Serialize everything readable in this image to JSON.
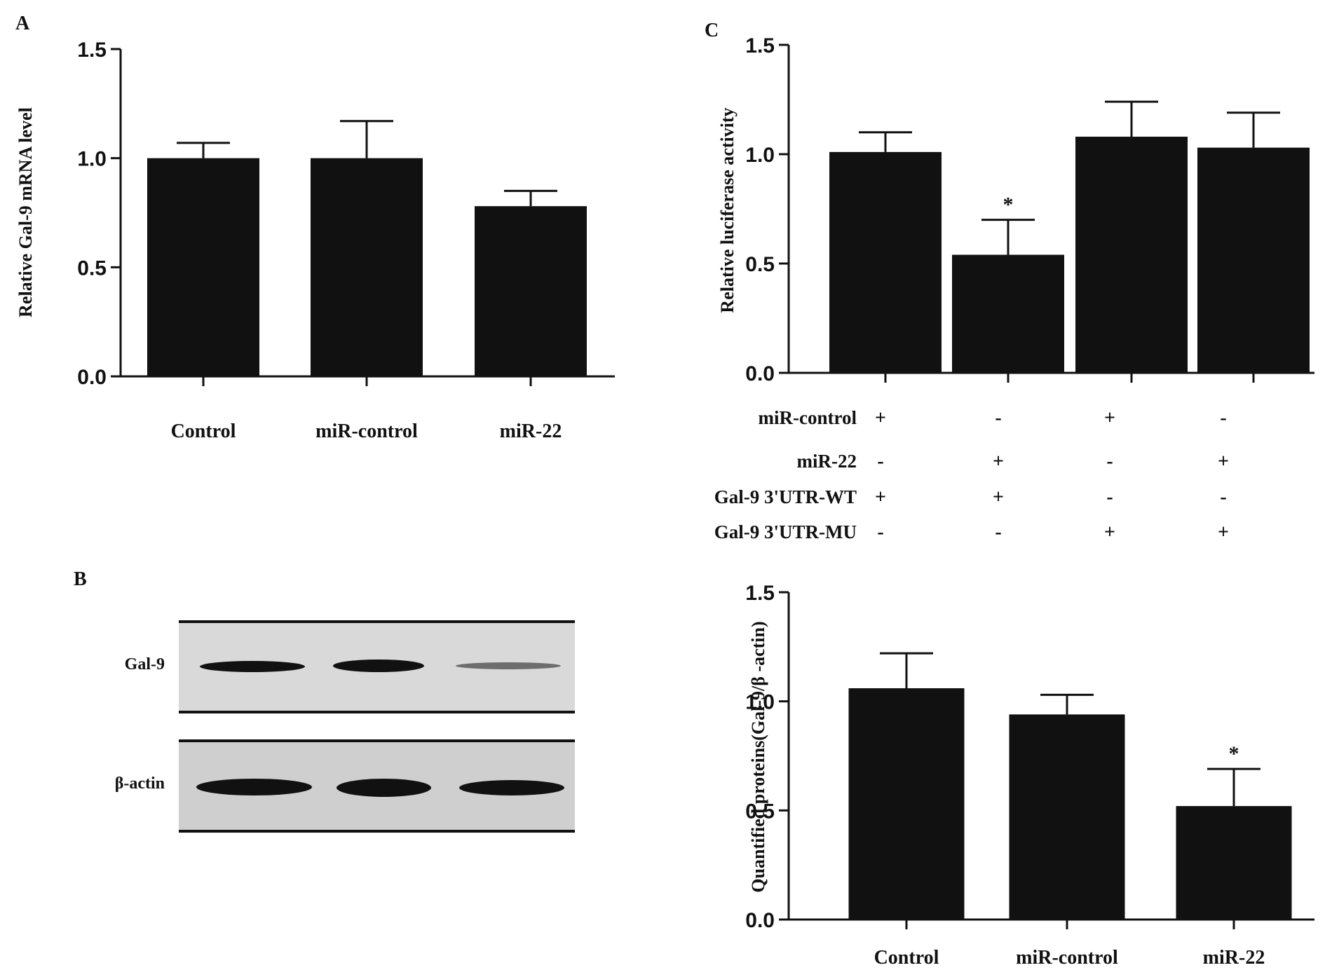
{
  "panels": {
    "a": {
      "letter": "A"
    },
    "b": {
      "letter": "B",
      "blot_labels": [
        "Gal-9",
        "β-actin"
      ]
    },
    "c": {
      "letter": "C"
    }
  },
  "chart_data": [
    {
      "id": "A",
      "type": "bar",
      "title": "",
      "xlabel": "",
      "ylabel": "Relative Gal-9 mRNA level",
      "ylim": [
        0,
        1.5
      ],
      "yticks": [
        "0.0",
        "0.5",
        "1.0",
        "1.5"
      ],
      "categories": [
        "Control",
        "miR-control",
        "miR-22"
      ],
      "values": [
        1.0,
        1.0,
        0.78
      ],
      "errors": [
        0.07,
        0.17,
        0.07
      ],
      "annotations": [
        "",
        "",
        ""
      ],
      "bar_color": "#111111"
    },
    {
      "id": "C",
      "type": "bar",
      "title": "",
      "xlabel": "",
      "ylabel": "Relative luciferase activity",
      "ylim": [
        0,
        1.5
      ],
      "yticks": [
        "0.0",
        "0.5",
        "1.0",
        "1.5"
      ],
      "categories": [
        "",
        "",
        "",
        ""
      ],
      "values": [
        1.01,
        0.54,
        1.08,
        1.03
      ],
      "errors": [
        0.09,
        0.16,
        0.16,
        0.16
      ],
      "annotations": [
        "",
        "*",
        "",
        ""
      ],
      "bar_color": "#111111",
      "condition_table": {
        "rows": [
          {
            "label": "miR-control",
            "marks": [
              "+",
              "-",
              "+",
              "-"
            ]
          },
          {
            "label": "miR-22",
            "marks": [
              "-",
              "+",
              "-",
              "+"
            ]
          },
          {
            "label": "Gal-9 3'UTR-WT",
            "marks": [
              "+",
              "+",
              "-",
              "-"
            ]
          },
          {
            "label": "Gal-9 3'UTR-MU",
            "marks": [
              "-",
              "-",
              "+",
              "+"
            ]
          }
        ]
      }
    },
    {
      "id": "B-quant",
      "type": "bar",
      "title": "",
      "xlabel": "",
      "ylabel": "Quantified proteins(Gal-9/β -actin)",
      "ylim": [
        0,
        1.5
      ],
      "yticks": [
        "0.0",
        "0.5",
        "1.0",
        "1.5"
      ],
      "categories": [
        "Control",
        "miR-control",
        "miR-22"
      ],
      "values": [
        1.06,
        0.94,
        0.52
      ],
      "errors": [
        0.16,
        0.09,
        0.17
      ],
      "annotations": [
        "",
        "",
        "*"
      ],
      "bar_color": "#111111"
    }
  ]
}
